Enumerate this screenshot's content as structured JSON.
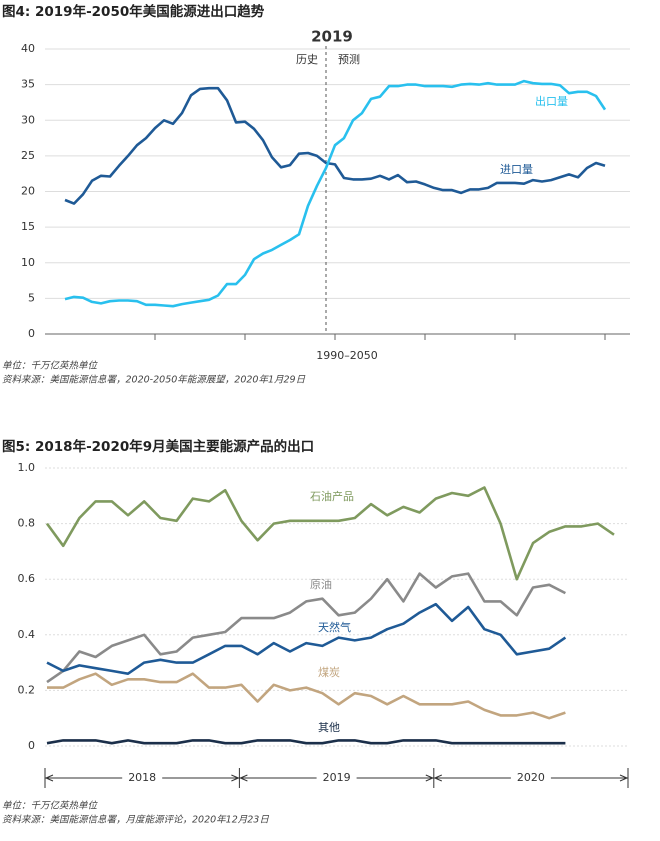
{
  "chart_data": [
    {
      "type": "line",
      "title": "图4: 2019年-2050年美国能源进出口趋势",
      "annotation": "2019",
      "history_label": "历史",
      "forecast_label": "预测",
      "xlabel": "1990–2050",
      "categories": [
        null,
        null,
        null,
        null,
        null,
        null,
        null,
        null,
        null,
        null,
        null,
        null,
        null,
        null,
        null,
        null,
        null,
        null,
        null,
        null,
        null,
        null,
        null,
        null,
        null,
        null,
        null,
        null,
        null,
        null,
        null,
        null,
        null,
        null,
        null,
        null,
        null,
        null,
        null,
        null,
        null,
        null,
        null,
        null,
        null,
        null,
        null,
        null,
        null,
        null,
        null,
        null,
        null,
        null,
        null,
        null,
        null,
        null,
        null,
        null,
        null
      ],
      "ylim": [
        0,
        40
      ],
      "yticks": [
        0,
        5,
        10,
        15,
        20,
        25,
        30,
        35,
        40
      ],
      "grid": true,
      "series": [
        {
          "name": "进口量",
          "color": "#1f5a96",
          "values": [
            18.8,
            18.3,
            19.6,
            21.5,
            22.2,
            22.1,
            23.6,
            25,
            26.5,
            27.5,
            28.9,
            30,
            29.5,
            31,
            33.5,
            34.4,
            34.5,
            34.5,
            32.8,
            29.7,
            29.8,
            28.8,
            27.2,
            24.8,
            23.4,
            23.7,
            25.3,
            25.4,
            25,
            24,
            23.8,
            21.9,
            21.7,
            21.7,
            21.8,
            22.2,
            21.7,
            22.3,
            21.3,
            21.4,
            21,
            20.5,
            20.2,
            20.2,
            19.8,
            20.3,
            20.3,
            20.5,
            21.2,
            21.2,
            21.2,
            21.1,
            21.6,
            21.4,
            21.6,
            22,
            22.4,
            22,
            23.3,
            24,
            23.6
          ]
        },
        {
          "name": "出口量",
          "color": "#29c0ee",
          "values": [
            4.9,
            5.2,
            5.1,
            4.5,
            4.3,
            4.6,
            4.7,
            4.7,
            4.6,
            4.1,
            4.1,
            4,
            3.9,
            4.2,
            4.4,
            4.6,
            4.8,
            5.4,
            7,
            7,
            8.3,
            10.5,
            11.3,
            11.8,
            12.5,
            13.2,
            14,
            18,
            20.8,
            23.3,
            26.5,
            27.5,
            30,
            31,
            33,
            33.3,
            34.8,
            34.8,
            35,
            35,
            34.8,
            34.8,
            34.8,
            34.7,
            35,
            35.1,
            35,
            35.2,
            35,
            35,
            35,
            35.5,
            35.2,
            35.1,
            35.1,
            34.9,
            33.8,
            34,
            34,
            33.4,
            31.5
          ]
        }
      ],
      "unit_note": "单位：千万亿英热单位",
      "source_note": "资料来源：美国能源信息署，2020-2050年能源展望，2020年1月29日"
    },
    {
      "type": "line",
      "title": "图5: 2018年-2020年9月美国主要能源产品的出口",
      "x_groups": [
        "2018",
        "2019",
        "2020"
      ],
      "categories": [
        null,
        null,
        null,
        null,
        null,
        null,
        null,
        null,
        null,
        null,
        null,
        null,
        null,
        null,
        null,
        null,
        null,
        null,
        null,
        null,
        null,
        null,
        null,
        null,
        null,
        null,
        null,
        null,
        null,
        null,
        null,
        null,
        null,
        null,
        null,
        null
      ],
      "ylim": [
        0,
        1
      ],
      "yticks": [
        0,
        0.2,
        0.4,
        0.6,
        0.8,
        {
          "value": 1,
          "label": "1.0"
        }
      ],
      "grid": true,
      "series": [
        {
          "name": "石油产品",
          "color": "#7f9a5e",
          "values": [
            0.8,
            0.72,
            0.82,
            0.88,
            0.88,
            0.83,
            0.88,
            0.82,
            0.81,
            0.89,
            0.88,
            0.92,
            0.81,
            0.74,
            0.8,
            0.81,
            0.81,
            0.81,
            0.81,
            0.82,
            0.87,
            0.83,
            0.86,
            0.84,
            0.89,
            0.91,
            0.9,
            0.93,
            0.8,
            0.6,
            0.73,
            0.77,
            0.79,
            0.79,
            0.8,
            0.76
          ]
        },
        {
          "name": "原油",
          "color": "#8a8a8a",
          "values": [
            0.23,
            0.27,
            0.34,
            0.32,
            0.36,
            0.38,
            0.4,
            0.33,
            0.34,
            0.39,
            0.4,
            0.41,
            0.46,
            0.46,
            0.46,
            0.48,
            0.52,
            0.53,
            0.47,
            0.48,
            0.53,
            0.6,
            0.52,
            0.62,
            0.57,
            0.61,
            0.62,
            0.52,
            0.52,
            0.47,
            0.57,
            0.58,
            0.55,
            null,
            null,
            null
          ]
        },
        {
          "name": "天然气",
          "color": "#1f5a96",
          "values": [
            0.3,
            0.27,
            0.29,
            0.28,
            0.27,
            0.26,
            0.3,
            0.31,
            0.3,
            0.3,
            0.33,
            0.36,
            0.36,
            0.33,
            0.37,
            0.34,
            0.37,
            0.36,
            0.39,
            0.38,
            0.39,
            0.42,
            0.44,
            0.48,
            0.51,
            0.45,
            0.5,
            0.42,
            0.4,
            0.33,
            0.34,
            0.35,
            0.39,
            null,
            null,
            null
          ]
        },
        {
          "name": "煤炭",
          "color": "#c2a57f",
          "values": [
            0.21,
            0.21,
            0.24,
            0.26,
            0.22,
            0.24,
            0.24,
            0.23,
            0.23,
            0.26,
            0.21,
            0.21,
            0.22,
            0.16,
            0.22,
            0.2,
            0.21,
            0.19,
            0.15,
            0.19,
            0.18,
            0.15,
            0.18,
            0.15,
            0.15,
            0.15,
            0.16,
            0.13,
            0.11,
            0.11,
            0.12,
            0.1,
            0.12,
            null,
            null,
            null
          ]
        },
        {
          "name": "其他",
          "color": "#1b2f4a",
          "values": [
            0.01,
            0.02,
            0.02,
            0.02,
            0.01,
            0.02,
            0.01,
            0.01,
            0.01,
            0.02,
            0.02,
            0.01,
            0.01,
            0.02,
            0.02,
            0.02,
            0.01,
            0.01,
            0.02,
            0.02,
            0.01,
            0.01,
            0.02,
            0.02,
            0.02,
            0.01,
            0.01,
            0.01,
            0.01,
            0.01,
            0.01,
            0.01,
            0.01,
            null,
            null,
            null
          ]
        }
      ],
      "unit_note": "单位：千万亿英热单位",
      "source_note": "资料来源：美国能源信息署，月度能源评论，2020年12月23日"
    }
  ]
}
